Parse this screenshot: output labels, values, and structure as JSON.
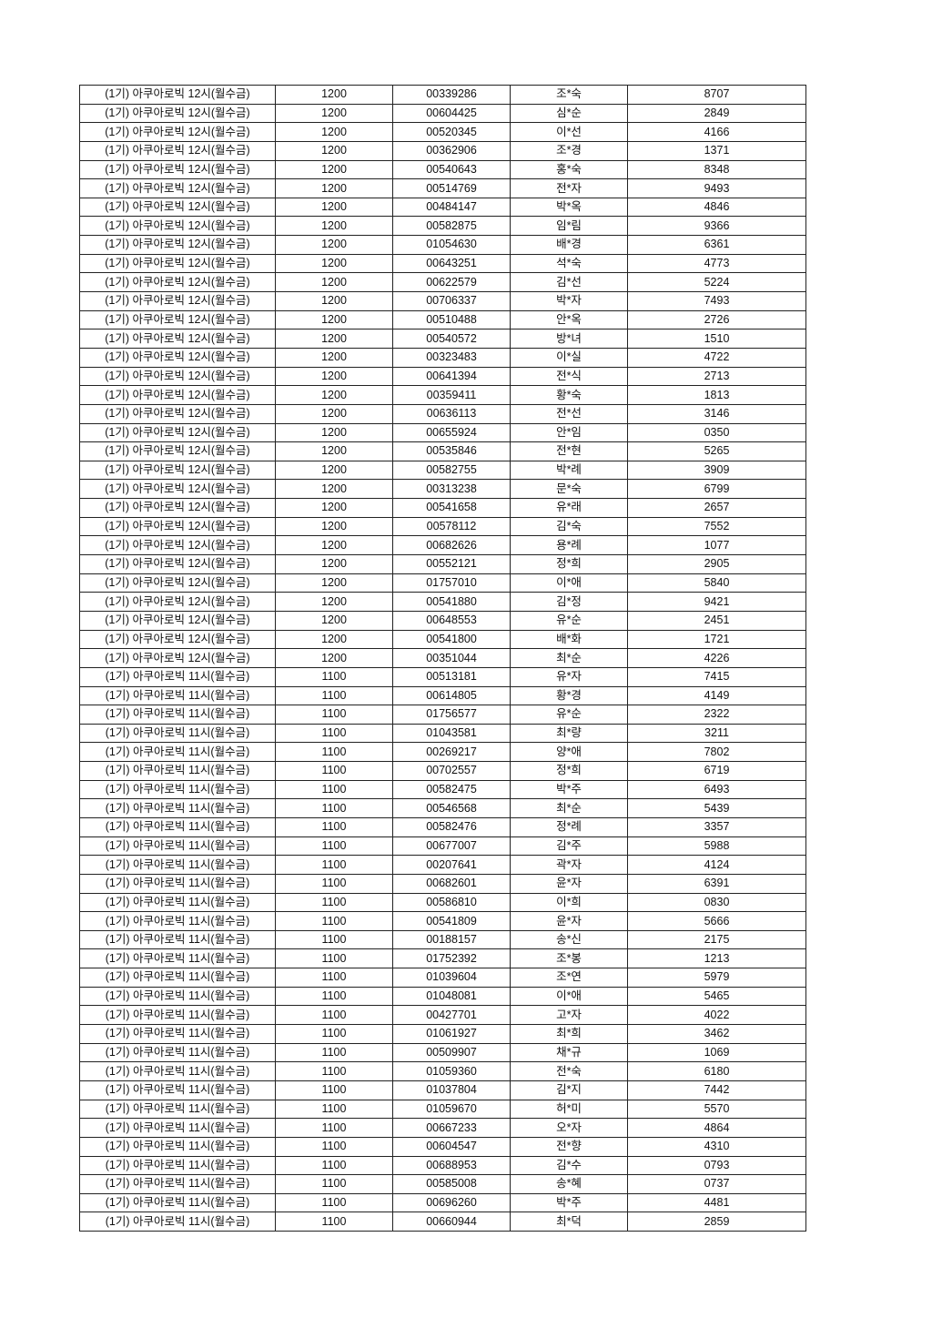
{
  "table": {
    "rows": [
      [
        "(1기) 아쿠아로빅 12시(월수금)",
        "1200",
        "00339286",
        "조*숙",
        "8707"
      ],
      [
        "(1기) 아쿠아로빅 12시(월수금)",
        "1200",
        "00604425",
        "심*순",
        "2849"
      ],
      [
        "(1기) 아쿠아로빅 12시(월수금)",
        "1200",
        "00520345",
        "이*선",
        "4166"
      ],
      [
        "(1기) 아쿠아로빅 12시(월수금)",
        "1200",
        "00362906",
        "조*경",
        "1371"
      ],
      [
        "(1기) 아쿠아로빅 12시(월수금)",
        "1200",
        "00540643",
        "홍*숙",
        "8348"
      ],
      [
        "(1기) 아쿠아로빅 12시(월수금)",
        "1200",
        "00514769",
        "전*자",
        "9493"
      ],
      [
        "(1기) 아쿠아로빅 12시(월수금)",
        "1200",
        "00484147",
        "박*옥",
        "4846"
      ],
      [
        "(1기) 아쿠아로빅 12시(월수금)",
        "1200",
        "00582875",
        "임*림",
        "9366"
      ],
      [
        "(1기) 아쿠아로빅 12시(월수금)",
        "1200",
        "01054630",
        "배*경",
        "6361"
      ],
      [
        "(1기) 아쿠아로빅 12시(월수금)",
        "1200",
        "00643251",
        "석*숙",
        "4773"
      ],
      [
        "(1기) 아쿠아로빅 12시(월수금)",
        "1200",
        "00622579",
        "김*선",
        "5224"
      ],
      [
        "(1기) 아쿠아로빅 12시(월수금)",
        "1200",
        "00706337",
        "박*자",
        "7493"
      ],
      [
        "(1기) 아쿠아로빅 12시(월수금)",
        "1200",
        "00510488",
        "안*옥",
        "2726"
      ],
      [
        "(1기) 아쿠아로빅 12시(월수금)",
        "1200",
        "00540572",
        "방*녀",
        "1510"
      ],
      [
        "(1기) 아쿠아로빅 12시(월수금)",
        "1200",
        "00323483",
        "이*실",
        "4722"
      ],
      [
        "(1기) 아쿠아로빅 12시(월수금)",
        "1200",
        "00641394",
        "전*식",
        "2713"
      ],
      [
        "(1기) 아쿠아로빅 12시(월수금)",
        "1200",
        "00359411",
        "황*숙",
        "1813"
      ],
      [
        "(1기) 아쿠아로빅 12시(월수금)",
        "1200",
        "00636113",
        "전*선",
        "3146"
      ],
      [
        "(1기) 아쿠아로빅 12시(월수금)",
        "1200",
        "00655924",
        "안*임",
        "0350"
      ],
      [
        "(1기) 아쿠아로빅 12시(월수금)",
        "1200",
        "00535846",
        "전*현",
        "5265"
      ],
      [
        "(1기) 아쿠아로빅 12시(월수금)",
        "1200",
        "00582755",
        "박*례",
        "3909"
      ],
      [
        "(1기) 아쿠아로빅 12시(월수금)",
        "1200",
        "00313238",
        "문*숙",
        "6799"
      ],
      [
        "(1기) 아쿠아로빅 12시(월수금)",
        "1200",
        "00541658",
        "유*래",
        "2657"
      ],
      [
        "(1기) 아쿠아로빅 12시(월수금)",
        "1200",
        "00578112",
        "김*숙",
        "7552"
      ],
      [
        "(1기) 아쿠아로빅 12시(월수금)",
        "1200",
        "00682626",
        "용*례",
        "1077"
      ],
      [
        "(1기) 아쿠아로빅 12시(월수금)",
        "1200",
        "00552121",
        "정*희",
        "2905"
      ],
      [
        "(1기) 아쿠아로빅 12시(월수금)",
        "1200",
        "01757010",
        "이*애",
        "5840"
      ],
      [
        "(1기) 아쿠아로빅 12시(월수금)",
        "1200",
        "00541880",
        "김*정",
        "9421"
      ],
      [
        "(1기) 아쿠아로빅 12시(월수금)",
        "1200",
        "00648553",
        "유*순",
        "2451"
      ],
      [
        "(1기) 아쿠아로빅 12시(월수금)",
        "1200",
        "00541800",
        "배*화",
        "1721"
      ],
      [
        "(1기) 아쿠아로빅 12시(월수금)",
        "1200",
        "00351044",
        "최*순",
        "4226"
      ],
      [
        "(1기) 아쿠아로빅 11시(월수금)",
        "1100",
        "00513181",
        "유*자",
        "7415"
      ],
      [
        "(1기) 아쿠아로빅 11시(월수금)",
        "1100",
        "00614805",
        "황*경",
        "4149"
      ],
      [
        "(1기) 아쿠아로빅 11시(월수금)",
        "1100",
        "01756577",
        "유*순",
        "2322"
      ],
      [
        "(1기) 아쿠아로빅 11시(월수금)",
        "1100",
        "01043581",
        "최*량",
        "3211"
      ],
      [
        "(1기) 아쿠아로빅 11시(월수금)",
        "1100",
        "00269217",
        "양*애",
        "7802"
      ],
      [
        "(1기) 아쿠아로빅 11시(월수금)",
        "1100",
        "00702557",
        "정*희",
        "6719"
      ],
      [
        "(1기) 아쿠아로빅 11시(월수금)",
        "1100",
        "00582475",
        "박*주",
        "6493"
      ],
      [
        "(1기) 아쿠아로빅 11시(월수금)",
        "1100",
        "00546568",
        "최*순",
        "5439"
      ],
      [
        "(1기) 아쿠아로빅 11시(월수금)",
        "1100",
        "00582476",
        "정*례",
        "3357"
      ],
      [
        "(1기) 아쿠아로빅 11시(월수금)",
        "1100",
        "00677007",
        "김*주",
        "5988"
      ],
      [
        "(1기) 아쿠아로빅 11시(월수금)",
        "1100",
        "00207641",
        "곽*자",
        "4124"
      ],
      [
        "(1기) 아쿠아로빅 11시(월수금)",
        "1100",
        "00682601",
        "윤*자",
        "6391"
      ],
      [
        "(1기) 아쿠아로빅 11시(월수금)",
        "1100",
        "00586810",
        "이*희",
        "0830"
      ],
      [
        "(1기) 아쿠아로빅 11시(월수금)",
        "1100",
        "00541809",
        "윤*자",
        "5666"
      ],
      [
        "(1기) 아쿠아로빅 11시(월수금)",
        "1100",
        "00188157",
        "송*신",
        "2175"
      ],
      [
        "(1기) 아쿠아로빅 11시(월수금)",
        "1100",
        "01752392",
        "조*봉",
        "1213"
      ],
      [
        "(1기) 아쿠아로빅 11시(월수금)",
        "1100",
        "01039604",
        "조*연",
        "5979"
      ],
      [
        "(1기) 아쿠아로빅 11시(월수금)",
        "1100",
        "01048081",
        "이*애",
        "5465"
      ],
      [
        "(1기) 아쿠아로빅 11시(월수금)",
        "1100",
        "00427701",
        "고*자",
        "4022"
      ],
      [
        "(1기) 아쿠아로빅 11시(월수금)",
        "1100",
        "01061927",
        "최*희",
        "3462"
      ],
      [
        "(1기) 아쿠아로빅 11시(월수금)",
        "1100",
        "00509907",
        "채*규",
        "1069"
      ],
      [
        "(1기) 아쿠아로빅 11시(월수금)",
        "1100",
        "01059360",
        "전*숙",
        "6180"
      ],
      [
        "(1기) 아쿠아로빅 11시(월수금)",
        "1100",
        "01037804",
        "김*지",
        "7442"
      ],
      [
        "(1기) 아쿠아로빅 11시(월수금)",
        "1100",
        "01059670",
        "허*미",
        "5570"
      ],
      [
        "(1기) 아쿠아로빅 11시(월수금)",
        "1100",
        "00667233",
        "오*자",
        "4864"
      ],
      [
        "(1기) 아쿠아로빅 11시(월수금)",
        "1100",
        "00604547",
        "전*향",
        "4310"
      ],
      [
        "(1기) 아쿠아로빅 11시(월수금)",
        "1100",
        "00688953",
        "김*수",
        "0793"
      ],
      [
        "(1기) 아쿠아로빅 11시(월수금)",
        "1100",
        "00585008",
        "송*혜",
        "0737"
      ],
      [
        "(1기) 아쿠아로빅 11시(월수금)",
        "1100",
        "00696260",
        "박*주",
        "4481"
      ],
      [
        "(1기) 아쿠아로빅 11시(월수금)",
        "1100",
        "00660944",
        "최*덕",
        "2859"
      ]
    ]
  }
}
